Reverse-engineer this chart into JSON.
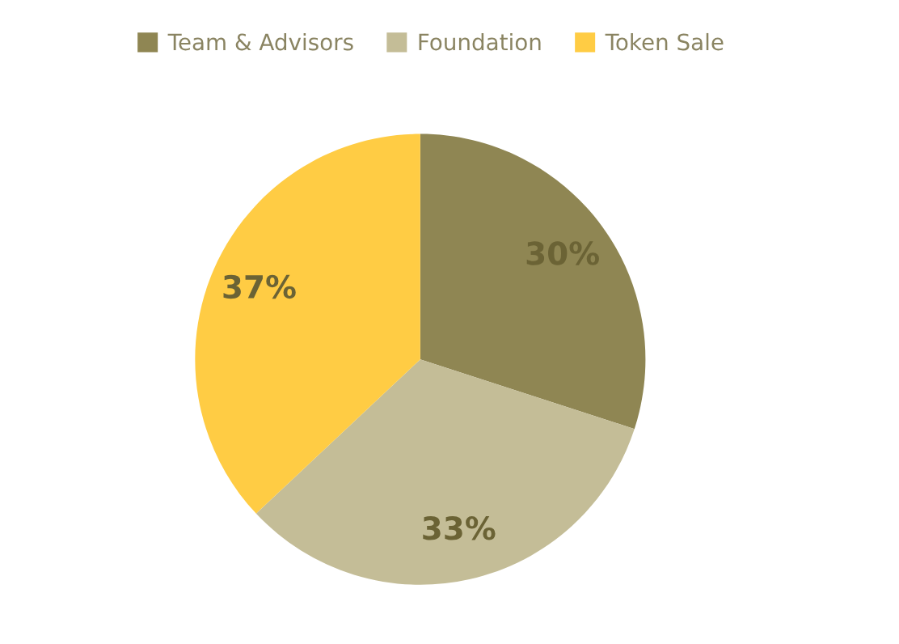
{
  "chart_data": {
    "type": "pie",
    "categories": [
      "Team & Advisors",
      "Foundation",
      "Token Sale"
    ],
    "values": [
      30,
      33,
      37
    ],
    "colors": [
      "#8f8653",
      "#c4bd97",
      "#ffcc44"
    ],
    "value_labels": [
      "30%",
      "33%",
      "37%"
    ],
    "legend": "top"
  }
}
